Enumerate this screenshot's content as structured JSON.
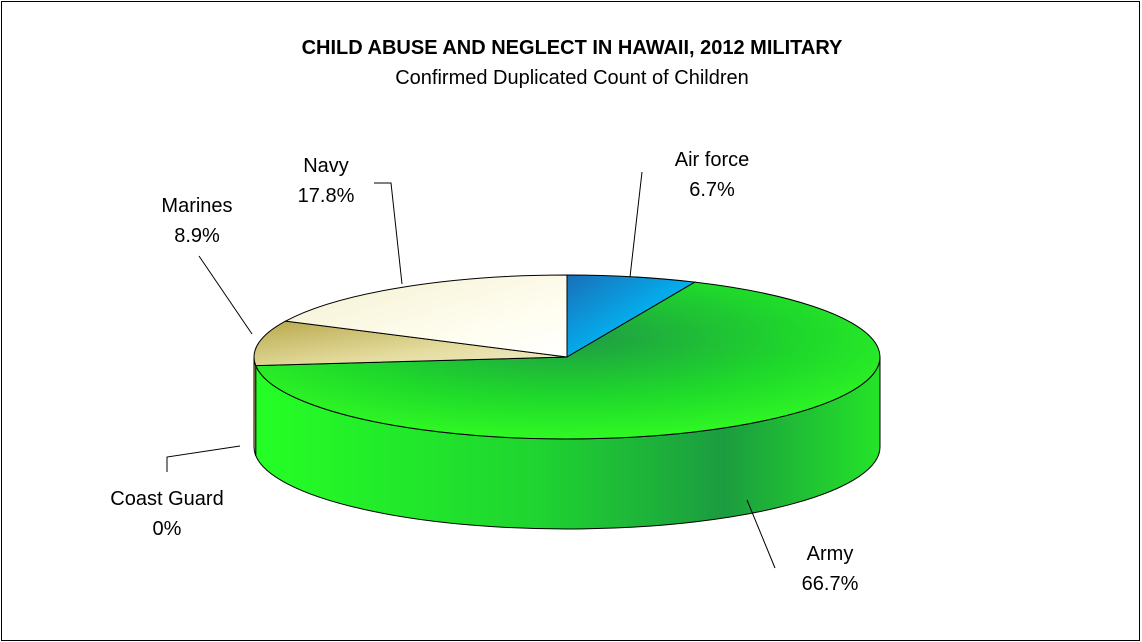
{
  "chart_data": {
    "type": "pie",
    "style": "3d",
    "title": "CHILD ABUSE AND NEGLECT IN HAWAII, 2012 MILITARY",
    "subtitle": "Confirmed Duplicated Count of Children",
    "slices": [
      {
        "name": "Air force",
        "value": 6.7,
        "label": "6.7%",
        "color": "#00b0f0"
      },
      {
        "name": "Army",
        "value": 66.7,
        "label": "66.7%",
        "color": "#22e822"
      },
      {
        "name": "Coast Guard",
        "value": 0,
        "label": "0%",
        "color": "#e6e6e6"
      },
      {
        "name": "Marines",
        "value": 8.9,
        "label": "8.9%",
        "color": "#d8cf76"
      },
      {
        "name": "Navy",
        "value": 17.8,
        "label": "17.8%",
        "color": "#fffde8"
      }
    ],
    "legend": "none"
  }
}
